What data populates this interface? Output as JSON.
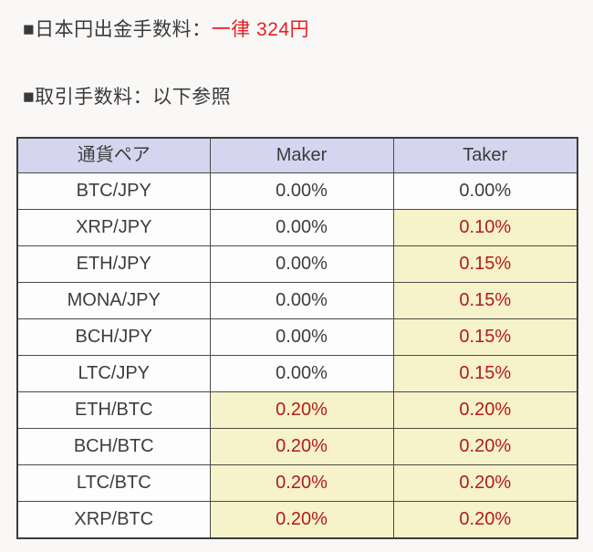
{
  "page": {
    "background_color": "#faf8f7",
    "text_color": "#3a3a3a"
  },
  "headings": {
    "withdrawal": {
      "label": "■日本円出金手数料：",
      "value": "一律 324円",
      "value_color": "#e81f1f"
    },
    "trading": {
      "label": "■取引手数料：以下参照"
    }
  },
  "fee_table": {
    "columns": [
      "通貨ペア",
      "Maker",
      "Taker"
    ],
    "colors": {
      "header_bg": "#d5d5ef",
      "cell_bg": "#fdfdfd",
      "highlight_bg": "#f6f2ca",
      "highlight_text": "#b11c1c",
      "border": "#4a4a4a"
    },
    "rows": [
      {
        "pair": "BTC/JPY",
        "maker": {
          "text": "0.00%",
          "highlight": false
        },
        "taker": {
          "text": "0.00%",
          "highlight": false
        }
      },
      {
        "pair": "XRP/JPY",
        "maker": {
          "text": "0.00%",
          "highlight": false
        },
        "taker": {
          "text": "0.10%",
          "highlight": true
        }
      },
      {
        "pair": "ETH/JPY",
        "maker": {
          "text": "0.00%",
          "highlight": false
        },
        "taker": {
          "text": "0.15%",
          "highlight": true
        }
      },
      {
        "pair": "MONA/JPY",
        "maker": {
          "text": "0.00%",
          "highlight": false
        },
        "taker": {
          "text": "0.15%",
          "highlight": true
        }
      },
      {
        "pair": "BCH/JPY",
        "maker": {
          "text": "0.00%",
          "highlight": false
        },
        "taker": {
          "text": "0.15%",
          "highlight": true
        }
      },
      {
        "pair": "LTC/JPY",
        "maker": {
          "text": "0.00%",
          "highlight": false
        },
        "taker": {
          "text": "0.15%",
          "highlight": true
        }
      },
      {
        "pair": "ETH/BTC",
        "maker": {
          "text": "0.20%",
          "highlight": true
        },
        "taker": {
          "text": "0.20%",
          "highlight": true
        }
      },
      {
        "pair": "BCH/BTC",
        "maker": {
          "text": "0.20%",
          "highlight": true
        },
        "taker": {
          "text": "0.20%",
          "highlight": true
        }
      },
      {
        "pair": "LTC/BTC",
        "maker": {
          "text": "0.20%",
          "highlight": true
        },
        "taker": {
          "text": "0.20%",
          "highlight": true
        }
      },
      {
        "pair": "XRP/BTC",
        "maker": {
          "text": "0.20%",
          "highlight": true
        },
        "taker": {
          "text": "0.20%",
          "highlight": true
        }
      }
    ]
  }
}
